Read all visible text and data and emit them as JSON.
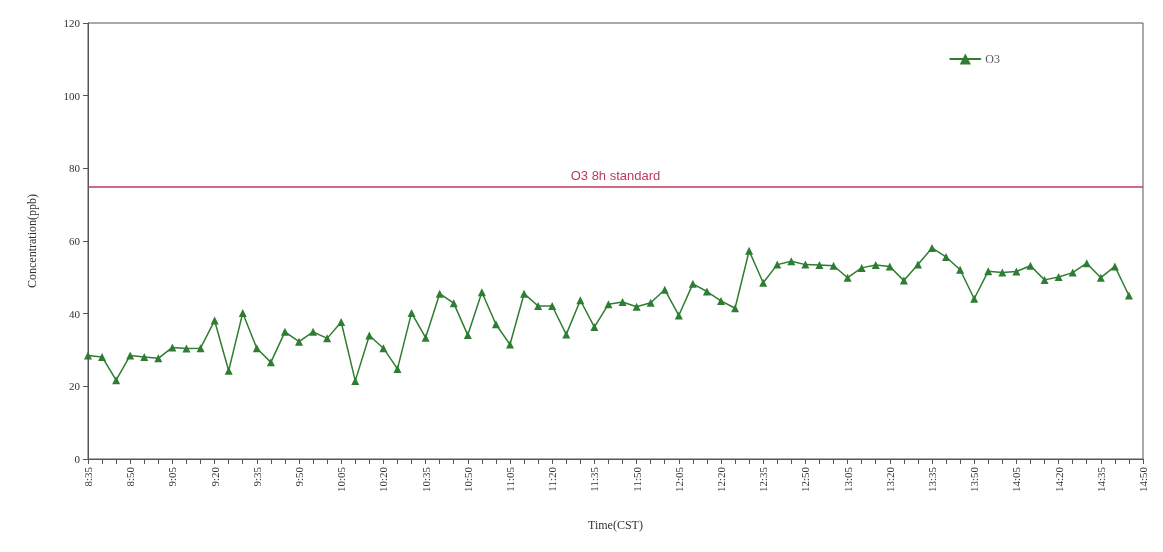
{
  "chart_data": {
    "type": "line",
    "xlabel": "Time(CST)",
    "ylabel": "Concentration(ppb)",
    "categories": [
      "8:35",
      null,
      null,
      "8:50",
      null,
      null,
      "9:05",
      null,
      null,
      "9:20",
      null,
      null,
      "9:35",
      null,
      null,
      "9:50",
      null,
      null,
      "10:05",
      null,
      null,
      "10:20",
      null,
      null,
      "10:35",
      null,
      null,
      "10:50",
      null,
      null,
      "11:05",
      null,
      null,
      "11:20",
      null,
      null,
      "11:35",
      null,
      null,
      "11:50",
      null,
      null,
      "12:05",
      null,
      null,
      "12:20",
      null,
      null,
      "12:35",
      null,
      null,
      "12:50",
      null,
      null,
      "13:05",
      null,
      null,
      "13:20",
      null,
      null,
      "13:35",
      null,
      null,
      "13:50",
      null,
      null,
      "14:05",
      null,
      null,
      "14:20",
      null,
      null,
      "14:35",
      null,
      null,
      "14:50"
    ],
    "series": [
      {
        "name": "O3",
        "color": "#2e7d32",
        "values": [
          28.5,
          28.1,
          21.7,
          28.5,
          28.1,
          27.7,
          30.7,
          30.4,
          30.5,
          38.1,
          24.3,
          40.2,
          30.5,
          26.6,
          35.0,
          32.3,
          35.0,
          33.2,
          37.7,
          21.5,
          34.0,
          30.5,
          24.8,
          40.2,
          33.4,
          45.5,
          42.9,
          34.1,
          45.9,
          37.1,
          31.5,
          45.5,
          42.1,
          42.1,
          34.3,
          43.7,
          36.3,
          42.6,
          43.2,
          41.9,
          43.0,
          46.6,
          39.5,
          48.2,
          46.1,
          43.5,
          41.5,
          57.3,
          48.5,
          53.5,
          54.4,
          53.5,
          53.4,
          53.2,
          49.9,
          52.6,
          53.4,
          53.0,
          49.1,
          53.5,
          58.1,
          55.6,
          52.1,
          44.1,
          51.7,
          51.3,
          51.6,
          53.2,
          49.3,
          50.1,
          51.3,
          53.9,
          49.9,
          53.0,
          45.0,
          null
        ]
      }
    ],
    "ylim": [
      0,
      120
    ],
    "yticks": [
      0,
      20,
      40,
      60,
      80,
      100,
      120
    ],
    "ref_lines": [
      {
        "axis": "y",
        "value": 75,
        "label": "O3 8h standard",
        "color": "#c0395a"
      }
    ],
    "grid": false,
    "legend": "top right",
    "marker": "triangle",
    "line_style": "solid"
  }
}
